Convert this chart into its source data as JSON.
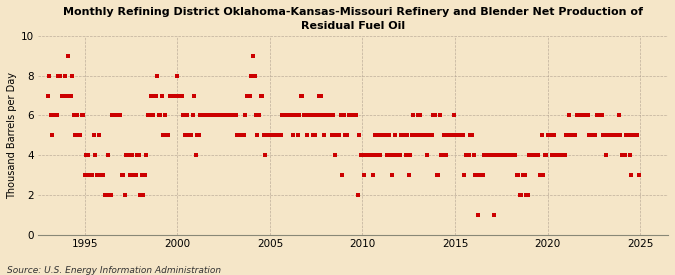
{
  "title": "Monthly Refining District Oklahoma-Kansas-Missouri Refinery and Blender Net Production of\nResidual Fuel Oil",
  "ylabel": "Thousand Barrels per Day",
  "source": "Source: U.S. Energy Information Administration",
  "xlim": [
    1992.5,
    2026.5
  ],
  "ylim": [
    0,
    10
  ],
  "yticks": [
    0,
    2,
    4,
    6,
    8,
    10
  ],
  "xticks": [
    1995,
    2000,
    2005,
    2010,
    2015,
    2020,
    2025
  ],
  "background_color": "#f5e6c8",
  "plot_bg_color": "#f5e6c8",
  "dot_color": "#cc0000",
  "dot_size": 5,
  "data_points": [
    [
      1993.0,
      7
    ],
    [
      1993.08,
      8
    ],
    [
      1993.17,
      6
    ],
    [
      1993.25,
      5
    ],
    [
      1993.33,
      6
    ],
    [
      1993.42,
      6
    ],
    [
      1993.5,
      6
    ],
    [
      1993.58,
      8
    ],
    [
      1993.67,
      8
    ],
    [
      1993.75,
      7
    ],
    [
      1993.83,
      7
    ],
    [
      1993.92,
      8
    ],
    [
      1994.0,
      7
    ],
    [
      1994.08,
      9
    ],
    [
      1994.17,
      7
    ],
    [
      1994.25,
      7
    ],
    [
      1994.33,
      8
    ],
    [
      1994.42,
      6
    ],
    [
      1994.5,
      5
    ],
    [
      1994.58,
      6
    ],
    [
      1994.67,
      5
    ],
    [
      1994.75,
      5
    ],
    [
      1994.83,
      6
    ],
    [
      1994.92,
      6
    ],
    [
      1995.0,
      3
    ],
    [
      1995.08,
      4
    ],
    [
      1995.17,
      4
    ],
    [
      1995.25,
      3
    ],
    [
      1995.33,
      3
    ],
    [
      1995.42,
      3
    ],
    [
      1995.5,
      5
    ],
    [
      1995.58,
      4
    ],
    [
      1995.67,
      3
    ],
    [
      1995.75,
      5
    ],
    [
      1995.83,
      3
    ],
    [
      1995.92,
      3
    ],
    [
      1996.0,
      3
    ],
    [
      1996.08,
      2
    ],
    [
      1996.17,
      2
    ],
    [
      1996.25,
      4
    ],
    [
      1996.33,
      2
    ],
    [
      1996.42,
      2
    ],
    [
      1996.5,
      6
    ],
    [
      1996.58,
      6
    ],
    [
      1996.67,
      6
    ],
    [
      1996.75,
      6
    ],
    [
      1996.83,
      6
    ],
    [
      1996.92,
      6
    ],
    [
      1997.0,
      3
    ],
    [
      1997.08,
      3
    ],
    [
      1997.17,
      2
    ],
    [
      1997.25,
      4
    ],
    [
      1997.33,
      4
    ],
    [
      1997.42,
      3
    ],
    [
      1997.5,
      4
    ],
    [
      1997.58,
      4
    ],
    [
      1997.67,
      3
    ],
    [
      1997.75,
      3
    ],
    [
      1997.83,
      4
    ],
    [
      1997.92,
      4
    ],
    [
      1998.0,
      2
    ],
    [
      1998.08,
      3
    ],
    [
      1998.17,
      2
    ],
    [
      1998.25,
      3
    ],
    [
      1998.33,
      4
    ],
    [
      1998.42,
      6
    ],
    [
      1998.5,
      6
    ],
    [
      1998.58,
      7
    ],
    [
      1998.67,
      6
    ],
    [
      1998.75,
      7
    ],
    [
      1998.83,
      7
    ],
    [
      1998.92,
      8
    ],
    [
      1999.0,
      6
    ],
    [
      1999.08,
      6
    ],
    [
      1999.17,
      7
    ],
    [
      1999.25,
      5
    ],
    [
      1999.33,
      6
    ],
    [
      1999.42,
      5
    ],
    [
      1999.5,
      5
    ],
    [
      1999.58,
      7
    ],
    [
      1999.67,
      7
    ],
    [
      1999.75,
      7
    ],
    [
      1999.83,
      7
    ],
    [
      1999.92,
      7
    ],
    [
      2000.0,
      8
    ],
    [
      2000.08,
      7
    ],
    [
      2000.17,
      7
    ],
    [
      2000.25,
      7
    ],
    [
      2000.33,
      6
    ],
    [
      2000.42,
      5
    ],
    [
      2000.5,
      6
    ],
    [
      2000.58,
      5
    ],
    [
      2000.67,
      5
    ],
    [
      2000.75,
      5
    ],
    [
      2000.83,
      6
    ],
    [
      2000.92,
      7
    ],
    [
      2001.0,
      4
    ],
    [
      2001.08,
      5
    ],
    [
      2001.17,
      5
    ],
    [
      2001.25,
      6
    ],
    [
      2001.33,
      6
    ],
    [
      2001.42,
      6
    ],
    [
      2001.5,
      6
    ],
    [
      2001.58,
      6
    ],
    [
      2001.67,
      6
    ],
    [
      2001.75,
      6
    ],
    [
      2001.83,
      6
    ],
    [
      2001.92,
      6
    ],
    [
      2002.0,
      6
    ],
    [
      2002.08,
      6
    ],
    [
      2002.17,
      6
    ],
    [
      2002.25,
      6
    ],
    [
      2002.33,
      6
    ],
    [
      2002.42,
      6
    ],
    [
      2002.5,
      6
    ],
    [
      2002.58,
      6
    ],
    [
      2002.67,
      6
    ],
    [
      2002.75,
      6
    ],
    [
      2002.83,
      6
    ],
    [
      2002.92,
      6
    ],
    [
      2003.0,
      6
    ],
    [
      2003.08,
      6
    ],
    [
      2003.17,
      6
    ],
    [
      2003.25,
      5
    ],
    [
      2003.33,
      5
    ],
    [
      2003.42,
      5
    ],
    [
      2003.5,
      5
    ],
    [
      2003.58,
      5
    ],
    [
      2003.67,
      6
    ],
    [
      2003.75,
      7
    ],
    [
      2003.83,
      7
    ],
    [
      2003.92,
      7
    ],
    [
      2004.0,
      8
    ],
    [
      2004.08,
      9
    ],
    [
      2004.17,
      8
    ],
    [
      2004.25,
      6
    ],
    [
      2004.33,
      5
    ],
    [
      2004.42,
      6
    ],
    [
      2004.5,
      7
    ],
    [
      2004.58,
      7
    ],
    [
      2004.67,
      5
    ],
    [
      2004.75,
      4
    ],
    [
      2004.83,
      5
    ],
    [
      2004.92,
      5
    ],
    [
      2005.0,
      5
    ],
    [
      2005.08,
      5
    ],
    [
      2005.17,
      5
    ],
    [
      2005.25,
      5
    ],
    [
      2005.33,
      5
    ],
    [
      2005.42,
      5
    ],
    [
      2005.5,
      5
    ],
    [
      2005.58,
      5
    ],
    [
      2005.67,
      6
    ],
    [
      2005.75,
      6
    ],
    [
      2005.83,
      6
    ],
    [
      2005.92,
      6
    ],
    [
      2006.0,
      6
    ],
    [
      2006.08,
      6
    ],
    [
      2006.17,
      6
    ],
    [
      2006.25,
      5
    ],
    [
      2006.33,
      6
    ],
    [
      2006.42,
      6
    ],
    [
      2006.5,
      5
    ],
    [
      2006.58,
      6
    ],
    [
      2006.67,
      7
    ],
    [
      2006.75,
      7
    ],
    [
      2006.83,
      6
    ],
    [
      2006.92,
      6
    ],
    [
      2007.0,
      5
    ],
    [
      2007.08,
      6
    ],
    [
      2007.17,
      6
    ],
    [
      2007.25,
      6
    ],
    [
      2007.33,
      5
    ],
    [
      2007.42,
      5
    ],
    [
      2007.5,
      6
    ],
    [
      2007.58,
      6
    ],
    [
      2007.67,
      7
    ],
    [
      2007.75,
      7
    ],
    [
      2007.83,
      6
    ],
    [
      2007.92,
      5
    ],
    [
      2008.0,
      6
    ],
    [
      2008.08,
      6
    ],
    [
      2008.17,
      6
    ],
    [
      2008.25,
      6
    ],
    [
      2008.33,
      5
    ],
    [
      2008.42,
      6
    ],
    [
      2008.5,
      4
    ],
    [
      2008.58,
      5
    ],
    [
      2008.67,
      5
    ],
    [
      2008.75,
      5
    ],
    [
      2008.83,
      6
    ],
    [
      2008.92,
      3
    ],
    [
      2009.0,
      6
    ],
    [
      2009.08,
      5
    ],
    [
      2009.17,
      5
    ],
    [
      2009.25,
      6
    ],
    [
      2009.33,
      6
    ],
    [
      2009.42,
      6
    ],
    [
      2009.5,
      6
    ],
    [
      2009.58,
      6
    ],
    [
      2009.67,
      6
    ],
    [
      2009.75,
      2
    ],
    [
      2009.83,
      5
    ],
    [
      2009.92,
      4
    ],
    [
      2010.0,
      4
    ],
    [
      2010.08,
      3
    ],
    [
      2010.17,
      4
    ],
    [
      2010.25,
      4
    ],
    [
      2010.33,
      4
    ],
    [
      2010.42,
      4
    ],
    [
      2010.5,
      4
    ],
    [
      2010.58,
      3
    ],
    [
      2010.67,
      5
    ],
    [
      2010.75,
      4
    ],
    [
      2010.83,
      5
    ],
    [
      2010.92,
      4
    ],
    [
      2011.0,
      5
    ],
    [
      2011.08,
      5
    ],
    [
      2011.17,
      5
    ],
    [
      2011.25,
      5
    ],
    [
      2011.33,
      4
    ],
    [
      2011.42,
      5
    ],
    [
      2011.5,
      4
    ],
    [
      2011.58,
      3
    ],
    [
      2011.67,
      4
    ],
    [
      2011.75,
      5
    ],
    [
      2011.83,
      4
    ],
    [
      2011.92,
      4
    ],
    [
      2012.0,
      4
    ],
    [
      2012.08,
      5
    ],
    [
      2012.17,
      5
    ],
    [
      2012.25,
      5
    ],
    [
      2012.33,
      4
    ],
    [
      2012.42,
      5
    ],
    [
      2012.5,
      3
    ],
    [
      2012.58,
      4
    ],
    [
      2012.67,
      5
    ],
    [
      2012.75,
      6
    ],
    [
      2012.83,
      5
    ],
    [
      2012.92,
      5
    ],
    [
      2013.0,
      6
    ],
    [
      2013.08,
      6
    ],
    [
      2013.17,
      5
    ],
    [
      2013.25,
      5
    ],
    [
      2013.33,
      5
    ],
    [
      2013.42,
      5
    ],
    [
      2013.5,
      4
    ],
    [
      2013.58,
      5
    ],
    [
      2013.67,
      5
    ],
    [
      2013.75,
      5
    ],
    [
      2013.83,
      6
    ],
    [
      2013.92,
      6
    ],
    [
      2014.0,
      3
    ],
    [
      2014.08,
      3
    ],
    [
      2014.17,
      6
    ],
    [
      2014.25,
      4
    ],
    [
      2014.33,
      4
    ],
    [
      2014.42,
      5
    ],
    [
      2014.5,
      4
    ],
    [
      2014.58,
      5
    ],
    [
      2014.67,
      5
    ],
    [
      2014.75,
      5
    ],
    [
      2014.83,
      5
    ],
    [
      2014.92,
      6
    ],
    [
      2015.0,
      5
    ],
    [
      2015.08,
      5
    ],
    [
      2015.17,
      5
    ],
    [
      2015.25,
      5
    ],
    [
      2015.33,
      5
    ],
    [
      2015.42,
      5
    ],
    [
      2015.5,
      3
    ],
    [
      2015.58,
      4
    ],
    [
      2015.67,
      4
    ],
    [
      2015.75,
      4
    ],
    [
      2015.83,
      5
    ],
    [
      2015.92,
      5
    ],
    [
      2016.0,
      4
    ],
    [
      2016.08,
      3
    ],
    [
      2016.17,
      3
    ],
    [
      2016.25,
      1
    ],
    [
      2016.33,
      3
    ],
    [
      2016.42,
      3
    ],
    [
      2016.5,
      3
    ],
    [
      2016.58,
      4
    ],
    [
      2016.67,
      4
    ],
    [
      2016.75,
      4
    ],
    [
      2016.83,
      4
    ],
    [
      2016.92,
      4
    ],
    [
      2017.0,
      4
    ],
    [
      2017.08,
      1
    ],
    [
      2017.17,
      4
    ],
    [
      2017.25,
      4
    ],
    [
      2017.33,
      4
    ],
    [
      2017.42,
      4
    ],
    [
      2017.5,
      4
    ],
    [
      2017.58,
      4
    ],
    [
      2017.67,
      4
    ],
    [
      2017.75,
      4
    ],
    [
      2017.83,
      4
    ],
    [
      2017.92,
      4
    ],
    [
      2018.0,
      4
    ],
    [
      2018.08,
      4
    ],
    [
      2018.17,
      4
    ],
    [
      2018.25,
      4
    ],
    [
      2018.33,
      3
    ],
    [
      2018.42,
      3
    ],
    [
      2018.5,
      2
    ],
    [
      2018.58,
      2
    ],
    [
      2018.67,
      3
    ],
    [
      2018.75,
      3
    ],
    [
      2018.83,
      2
    ],
    [
      2018.92,
      2
    ],
    [
      2019.0,
      4
    ],
    [
      2019.08,
      4
    ],
    [
      2019.17,
      4
    ],
    [
      2019.25,
      4
    ],
    [
      2019.33,
      4
    ],
    [
      2019.42,
      4
    ],
    [
      2019.5,
      4
    ],
    [
      2019.58,
      3
    ],
    [
      2019.67,
      5
    ],
    [
      2019.75,
      3
    ],
    [
      2019.83,
      4
    ],
    [
      2019.92,
      4
    ],
    [
      2020.0,
      5
    ],
    [
      2020.08,
      5
    ],
    [
      2020.17,
      5
    ],
    [
      2020.25,
      4
    ],
    [
      2020.33,
      5
    ],
    [
      2020.42,
      4
    ],
    [
      2020.5,
      4
    ],
    [
      2020.58,
      4
    ],
    [
      2020.67,
      4
    ],
    [
      2020.75,
      4
    ],
    [
      2020.83,
      4
    ],
    [
      2020.92,
      4
    ],
    [
      2021.0,
      5
    ],
    [
      2021.08,
      5
    ],
    [
      2021.17,
      6
    ],
    [
      2021.25,
      5
    ],
    [
      2021.33,
      5
    ],
    [
      2021.42,
      5
    ],
    [
      2021.5,
      5
    ],
    [
      2021.58,
      6
    ],
    [
      2021.67,
      6
    ],
    [
      2021.75,
      6
    ],
    [
      2021.83,
      6
    ],
    [
      2021.92,
      6
    ],
    [
      2022.0,
      6
    ],
    [
      2022.08,
      6
    ],
    [
      2022.17,
      6
    ],
    [
      2022.25,
      5
    ],
    [
      2022.33,
      5
    ],
    [
      2022.42,
      5
    ],
    [
      2022.5,
      5
    ],
    [
      2022.58,
      5
    ],
    [
      2022.67,
      6
    ],
    [
      2022.75,
      6
    ],
    [
      2022.83,
      6
    ],
    [
      2022.92,
      6
    ],
    [
      2023.0,
      5
    ],
    [
      2023.08,
      5
    ],
    [
      2023.17,
      4
    ],
    [
      2023.25,
      5
    ],
    [
      2023.33,
      5
    ],
    [
      2023.42,
      5
    ],
    [
      2023.5,
      5
    ],
    [
      2023.58,
      5
    ],
    [
      2023.67,
      5
    ],
    [
      2023.75,
      5
    ],
    [
      2023.83,
      6
    ],
    [
      2023.92,
      5
    ],
    [
      2024.0,
      4
    ],
    [
      2024.08,
      4
    ],
    [
      2024.17,
      4
    ],
    [
      2024.25,
      5
    ],
    [
      2024.33,
      5
    ],
    [
      2024.42,
      4
    ],
    [
      2024.5,
      3
    ],
    [
      2024.58,
      5
    ],
    [
      2024.67,
      5
    ],
    [
      2024.75,
      5
    ],
    [
      2024.83,
      5
    ],
    [
      2024.92,
      3
    ]
  ]
}
